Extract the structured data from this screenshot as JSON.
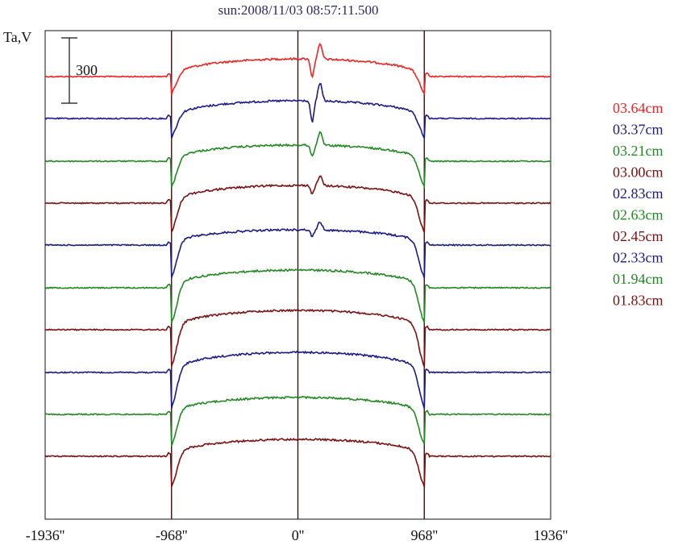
{
  "chart_data": {
    "type": "line",
    "title": "sun:2008/11/03 08:57:11.500",
    "ylabel": "Ta,V",
    "scale_bar_label": "300",
    "x_ticks": [
      "-1936''",
      "-968''",
      "0''",
      "968''",
      "1936''"
    ],
    "x_tick_values": [
      -1936,
      -968,
      0,
      968,
      1936
    ],
    "xlim": [
      -1936,
      1936
    ],
    "vertical_lines": [
      -968,
      0,
      968
    ],
    "series": [
      {
        "name": "03.64cm",
        "color": "#ee2222",
        "base": 95,
        "depth": 22,
        "center": 73,
        "feature": 18,
        "featureAmp": 22
      },
      {
        "name": "03.37cm",
        "color": "#1a1a88",
        "base": 147,
        "depth": 24,
        "center": 125,
        "feature": 22,
        "featureAmp": 26
      },
      {
        "name": "03.21cm",
        "color": "#228822",
        "base": 200,
        "depth": 32,
        "center": 180,
        "feature": 16,
        "featureAmp": 14
      },
      {
        "name": "03.00cm",
        "color": "#7a1010",
        "base": 252,
        "depth": 36,
        "center": 230,
        "feature": 12,
        "featureAmp": 10
      },
      {
        "name": "02.83cm",
        "color": "#1a1a88",
        "base": 304,
        "depth": 40,
        "center": 285,
        "feature": 10,
        "featureAmp": 8
      },
      {
        "name": "02.63cm",
        "color": "#228822",
        "base": 357,
        "depth": 44,
        "center": 335,
        "feature": 0,
        "featureAmp": 0
      },
      {
        "name": "02.45cm",
        "color": "#7a1010",
        "base": 409,
        "depth": 46,
        "center": 385,
        "feature": 0,
        "featureAmp": 0
      },
      {
        "name": "02.33cm",
        "color": "#1a1a88",
        "base": 462,
        "depth": 44,
        "center": 437,
        "feature": 0,
        "featureAmp": 0
      },
      {
        "name": "01.94cm",
        "color": "#228822",
        "base": 514,
        "depth": 38,
        "center": 493,
        "feature": 0,
        "featureAmp": 0
      },
      {
        "name": "01.83cm",
        "color": "#7a1010",
        "base": 566,
        "depth": 38,
        "center": 545,
        "feature": 0,
        "featureAmp": 0
      }
    ]
  }
}
